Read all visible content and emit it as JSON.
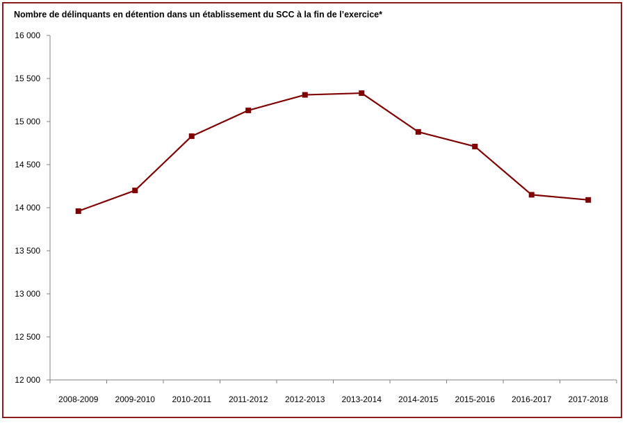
{
  "chart_data": {
    "type": "line",
    "title": "Nombre de délinquants en détention dans un établissement du SCC à la fin de l’exercice*",
    "xlabel": "",
    "ylabel": "",
    "categories": [
      "2008-2009",
      "2009-2010",
      "2010-2011",
      "2011-2012",
      "2012-2013",
      "2013-2014",
      "2014-2015",
      "2015-2016",
      "2016-2017",
      "2017-2018"
    ],
    "series": [
      {
        "values": [
          13960,
          14200,
          14830,
          15130,
          15310,
          15330,
          14880,
          14710,
          14150,
          14090
        ],
        "color": "#7f0000"
      }
    ],
    "ylim": [
      12000,
      16000
    ],
    "yticks": [
      12000,
      12500,
      13000,
      13500,
      14000,
      14500,
      15000,
      15500,
      16000
    ],
    "ytick_labels": [
      "12 000",
      "12 500",
      "13 000",
      "13 500",
      "14 000",
      "14 500",
      "15 000",
      "15 500",
      "16 000"
    ],
    "grid": false,
    "legend": "none",
    "frame_color": "#8b1a1a"
  }
}
